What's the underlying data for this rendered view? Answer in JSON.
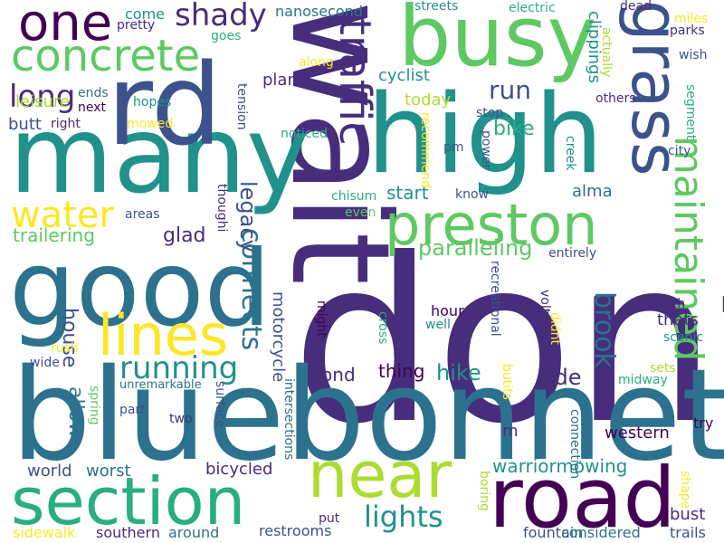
{
  "palette": {
    "background": "#ffffff",
    "p1": "#440154",
    "p2": "#472d7b",
    "p3": "#3b528b",
    "p4": "#2c728e",
    "p5": "#21918c",
    "p6": "#28ae80",
    "p7": "#5ec962",
    "p8": "#addc30",
    "p9": "#fde725"
  },
  "words": [
    {
      "text": "dont",
      "color": "p2"
    },
    {
      "text": "bluebonnet",
      "color": "p4"
    },
    {
      "text": "wait",
      "color": "p2"
    },
    {
      "text": "high",
      "color": "p5"
    },
    {
      "text": "good",
      "color": "p4"
    },
    {
      "text": "many",
      "color": "p5"
    },
    {
      "text": "rd",
      "color": "p3"
    },
    {
      "text": "busy",
      "color": "p7"
    },
    {
      "text": "road",
      "color": "p1"
    },
    {
      "text": "section",
      "color": "p6"
    },
    {
      "text": "near",
      "color": "p8"
    },
    {
      "text": "grass",
      "color": "p3"
    },
    {
      "text": "preston",
      "color": "p7"
    },
    {
      "text": "lines",
      "color": "p9"
    },
    {
      "text": "one",
      "color": "p1"
    },
    {
      "text": "concrete",
      "color": "p7"
    },
    {
      "text": "traffic",
      "color": "p2"
    },
    {
      "text": "maintained",
      "color": "p7"
    },
    {
      "text": "long",
      "color": "p2"
    },
    {
      "text": "water",
      "color": "p9"
    },
    {
      "text": "running",
      "color": "p5"
    },
    {
      "text": "connects",
      "color": "p4"
    },
    {
      "text": "lights",
      "color": "p5"
    },
    {
      "text": "brook",
      "color": "p4"
    },
    {
      "text": "legacy",
      "color": "p3"
    },
    {
      "text": "shady",
      "color": "p2"
    },
    {
      "text": "run",
      "color": "p3"
    },
    {
      "text": "paralleling",
      "color": "p7"
    },
    {
      "text": "trailering",
      "color": "p7"
    },
    {
      "text": "warriormowing",
      "color": "p5"
    },
    {
      "text": "hike",
      "color": "p5"
    },
    {
      "text": "bike",
      "color": "p6"
    },
    {
      "text": "start",
      "color": "p5"
    },
    {
      "text": "glad",
      "color": "p2"
    },
    {
      "text": "ride",
      "color": "p2"
    },
    {
      "text": "house",
      "color": "p3"
    },
    {
      "text": "allow",
      "color": "p4"
    },
    {
      "text": "motorcycle",
      "color": "p3"
    },
    {
      "text": "bicycled",
      "color": "p2"
    },
    {
      "text": "world",
      "color": "p3"
    },
    {
      "text": "worst",
      "color": "p4"
    },
    {
      "text": "thing",
      "color": "p1"
    },
    {
      "text": "fond",
      "color": "p2"
    },
    {
      "text": "alma",
      "color": "p4"
    },
    {
      "text": "clippings",
      "color": "p5"
    },
    {
      "text": "western",
      "color": "p1"
    },
    {
      "text": "bust",
      "color": "p2"
    },
    {
      "text": "today",
      "color": "p8"
    },
    {
      "text": "leisure",
      "color": "p8"
    },
    {
      "text": "cyclist",
      "color": "p5"
    },
    {
      "text": "thats",
      "color": "p2"
    },
    {
      "text": "nanosecond",
      "color": "p4"
    },
    {
      "text": "plano",
      "color": "p2"
    },
    {
      "text": "hour",
      "color": "p1"
    },
    {
      "text": "come",
      "color": "p5"
    },
    {
      "text": "fountain",
      "color": "p3"
    },
    {
      "text": "restrooms",
      "color": "p3"
    },
    {
      "text": "considered",
      "color": "p4"
    },
    {
      "text": "butt",
      "color": "p3"
    },
    {
      "text": "m",
      "color": "p2"
    },
    {
      "text": "sidewalk",
      "color": "p9"
    },
    {
      "text": "southern",
      "color": "p2"
    },
    {
      "text": "around",
      "color": "p4"
    },
    {
      "text": "trails",
      "color": "p3"
    },
    {
      "text": "put",
      "color": "p2"
    },
    {
      "text": "try",
      "color": "p1"
    },
    {
      "text": "sets",
      "color": "p8"
    },
    {
      "text": "midway",
      "color": "p6"
    },
    {
      "text": "scenic",
      "color": "p5"
    },
    {
      "text": "much",
      "color": "p2"
    },
    {
      "text": "city",
      "color": "p3"
    },
    {
      "text": "parks",
      "color": "p2"
    },
    {
      "text": "wish",
      "color": "p3"
    },
    {
      "text": "miles",
      "color": "p9"
    },
    {
      "text": "dead",
      "color": "p2"
    },
    {
      "text": "electric",
      "color": "p6"
    },
    {
      "text": "streets",
      "color": "p5"
    },
    {
      "text": "pretty",
      "color": "p2"
    },
    {
      "text": "goes",
      "color": "p6"
    },
    {
      "text": "along",
      "color": "p9"
    },
    {
      "text": "hopes",
      "color": "p5"
    },
    {
      "text": "mowed",
      "color": "p9"
    },
    {
      "text": "ends",
      "color": "p4"
    },
    {
      "text": "next",
      "color": "p1"
    },
    {
      "text": "right",
      "color": "p2"
    },
    {
      "text": "noticed",
      "color": "p6"
    },
    {
      "text": "stop",
      "color": "p3"
    },
    {
      "text": "others",
      "color": "p2"
    },
    {
      "text": "pm",
      "color": "p3"
    },
    {
      "text": "know",
      "color": "p3"
    },
    {
      "text": "chisum",
      "color": "p6"
    },
    {
      "text": "even",
      "color": "p7"
    },
    {
      "text": "areas",
      "color": "p3"
    },
    {
      "text": "well",
      "color": "p5"
    },
    {
      "text": "rush",
      "color": "p9"
    },
    {
      "text": "wide",
      "color": "p3"
    },
    {
      "text": "unremarkable",
      "color": "p4"
    },
    {
      "text": "part",
      "color": "p3"
    },
    {
      "text": "two",
      "color": "p2"
    },
    {
      "text": "might",
      "color": "p1"
    },
    {
      "text": "tension",
      "color": "p3"
    },
    {
      "text": "thoughi",
      "color": "p2"
    },
    {
      "text": "spring",
      "color": "p7"
    },
    {
      "text": "surface",
      "color": "p3"
    },
    {
      "text": "intersections",
      "color": "p4"
    },
    {
      "text": "cross",
      "color": "p6"
    },
    {
      "text": "recreational",
      "color": "p3"
    },
    {
      "text": "voltage",
      "color": "p2"
    },
    {
      "text": "didnt",
      "color": "p9"
    },
    {
      "text": "butits",
      "color": "p9"
    },
    {
      "text": "boring",
      "color": "p8"
    },
    {
      "text": "connection",
      "color": "p4"
    },
    {
      "text": "shape",
      "color": "p9"
    },
    {
      "text": "actually",
      "color": "p8"
    },
    {
      "text": "segment",
      "color": "p6"
    },
    {
      "text": "creek",
      "color": "p5"
    },
    {
      "text": "power",
      "color": "p3"
    },
    {
      "text": "recommend",
      "color": "p9"
    },
    {
      "text": "entirely",
      "color": "p3"
    }
  ]
}
